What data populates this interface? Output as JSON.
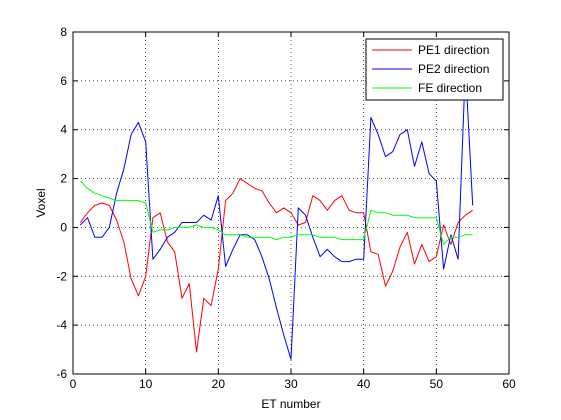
{
  "chart_data": {
    "type": "line",
    "title": "",
    "xlabel": "ET number",
    "ylabel": "Voxel",
    "xlim": [
      0,
      60
    ],
    "ylim": [
      -6,
      8
    ],
    "xticks": [
      "0",
      "10",
      "20",
      "30",
      "40",
      "50",
      "60"
    ],
    "yticks": [
      "8",
      "6",
      "4",
      "2",
      "0",
      "-2",
      "-4",
      "-6"
    ],
    "grid": true,
    "legend_position": "top-right",
    "series": [
      {
        "name": "PE1 direction",
        "color": "#ff0000",
        "x": [
          1,
          2,
          3,
          4,
          5,
          6,
          7,
          8,
          9,
          10,
          11,
          12,
          13,
          14,
          15,
          16,
          17,
          18,
          19,
          20,
          21,
          22,
          23,
          24,
          25,
          26,
          27,
          28,
          29,
          30,
          31,
          32,
          33,
          34,
          35,
          36,
          37,
          38,
          39,
          40,
          41,
          42,
          43,
          44,
          45,
          46,
          47,
          48,
          49,
          50,
          51,
          52,
          53,
          54,
          55
        ],
        "y": [
          0.2,
          0.6,
          0.9,
          1.0,
          0.9,
          0.3,
          -0.6,
          -2.1,
          -2.8,
          -2.0,
          0.4,
          0.6,
          -0.6,
          -1.0,
          -2.9,
          -2.3,
          -5.1,
          -2.9,
          -3.2,
          -1.7,
          1.1,
          1.4,
          2.0,
          1.8,
          1.6,
          1.5,
          1.0,
          0.6,
          0.8,
          0.6,
          0.1,
          0.2,
          1.3,
          1.1,
          0.7,
          1.1,
          1.3,
          0.7,
          0.6,
          0.6,
          -1.0,
          -1.1,
          -2.4,
          -1.8,
          -0.8,
          -0.2,
          -1.5,
          -0.7,
          -1.4,
          -1.2,
          0.1,
          -0.7,
          0.2,
          0.5,
          0.7
        ]
      },
      {
        "name": "PE2 direction",
        "color": "#0000ff",
        "x": [
          1,
          2,
          3,
          4,
          5,
          6,
          7,
          8,
          9,
          10,
          11,
          12,
          13,
          14,
          15,
          16,
          17,
          18,
          19,
          20,
          21,
          22,
          23,
          24,
          25,
          26,
          27,
          28,
          29,
          30,
          31,
          32,
          33,
          34,
          35,
          36,
          37,
          38,
          39,
          40,
          41,
          42,
          43,
          44,
          45,
          46,
          47,
          48,
          49,
          50,
          51,
          52,
          53,
          54,
          55
        ],
        "y": [
          0.1,
          0.4,
          -0.4,
          -0.4,
          0.0,
          1.4,
          2.4,
          3.8,
          4.3,
          3.5,
          -1.3,
          -0.9,
          -0.4,
          -0.2,
          0.2,
          0.2,
          0.2,
          0.5,
          0.3,
          1.3,
          -1.6,
          -0.9,
          -0.3,
          -0.3,
          -0.5,
          -1.2,
          -2.1,
          -3.3,
          -4.4,
          -5.4,
          0.8,
          0.5,
          -0.4,
          -1.2,
          -0.9,
          -1.2,
          -1.4,
          -1.4,
          -1.3,
          -1.3,
          4.5,
          3.8,
          2.9,
          3.1,
          3.8,
          4.0,
          2.5,
          3.5,
          2.2,
          1.9,
          -1.7,
          -0.3,
          -1.3,
          6.6,
          0.9
        ]
      },
      {
        "name": "FE direction",
        "color": "#00ff00",
        "x": [
          1,
          2,
          3,
          4,
          5,
          6,
          7,
          8,
          9,
          10,
          11,
          12,
          13,
          14,
          15,
          16,
          17,
          18,
          19,
          20,
          21,
          22,
          23,
          24,
          25,
          26,
          27,
          28,
          29,
          30,
          31,
          32,
          33,
          34,
          35,
          36,
          37,
          38,
          39,
          40,
          41,
          42,
          43,
          44,
          45,
          46,
          47,
          48,
          49,
          50,
          51,
          52,
          53,
          54,
          55
        ],
        "y": [
          1.9,
          1.6,
          1.4,
          1.3,
          1.2,
          1.1,
          1.1,
          1.1,
          1.1,
          1.0,
          -0.2,
          -0.1,
          -0.1,
          0.0,
          0.0,
          0.0,
          0.1,
          0.0,
          0.0,
          -0.1,
          -0.3,
          -0.3,
          -0.3,
          -0.4,
          -0.4,
          -0.4,
          -0.4,
          -0.5,
          -0.4,
          -0.4,
          -0.3,
          -0.3,
          -0.3,
          -0.4,
          -0.4,
          -0.4,
          -0.5,
          -0.5,
          -0.5,
          -0.5,
          0.7,
          0.6,
          0.6,
          0.5,
          0.5,
          0.5,
          0.4,
          0.4,
          0.4,
          0.4,
          -0.7,
          -0.4,
          -0.4,
          -0.3,
          -0.3
        ]
      }
    ]
  }
}
